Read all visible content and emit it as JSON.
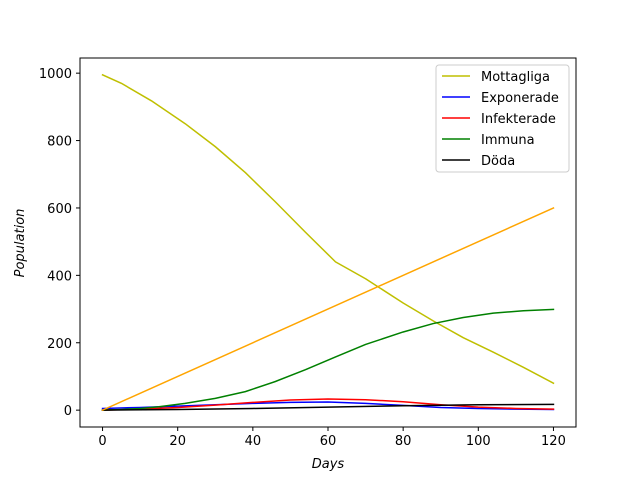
{
  "chart_data": {
    "type": "line",
    "xlabel": "Days",
    "ylabel": "Population",
    "xlim": [
      -6,
      126
    ],
    "ylim": [
      -50,
      1045
    ],
    "x_ticks": [
      0,
      20,
      40,
      60,
      80,
      100,
      120
    ],
    "y_ticks": [
      0,
      200,
      400,
      600,
      800,
      1000
    ],
    "grid": false,
    "legend_position": "top-right",
    "series": [
      {
        "name": "Mottagliga",
        "color": "#bfbf00",
        "x": [
          0,
          5,
          13,
          22,
          30,
          38,
          46,
          54,
          62,
          70,
          80,
          88,
          96,
          104,
          112,
          120
        ],
        "values": [
          995,
          970,
          918,
          850,
          782,
          705,
          618,
          528,
          440,
          390,
          318,
          265,
          215,
          172,
          127,
          80
        ]
      },
      {
        "name": "Exponerade",
        "color": "#0000ff",
        "x": [
          0,
          10,
          20,
          30,
          40,
          50,
          60,
          70,
          80,
          90,
          100,
          110,
          120
        ],
        "values": [
          5,
          8,
          12,
          16,
          20,
          23,
          24,
          20,
          14,
          8,
          5,
          3,
          2
        ]
      },
      {
        "name": "Infekterade",
        "color": "#ff0000",
        "x": [
          0,
          10,
          20,
          30,
          40,
          50,
          60,
          70,
          80,
          90,
          100,
          110,
          120
        ],
        "values": [
          0,
          3,
          8,
          15,
          23,
          30,
          33,
          31,
          25,
          16,
          9,
          5,
          3
        ]
      },
      {
        "name": "Immuna",
        "color": "#008000",
        "x": [
          0,
          5,
          10,
          15,
          22,
          30,
          38,
          46,
          54,
          62,
          70,
          80,
          88,
          96,
          104,
          112,
          120
        ],
        "values": [
          0,
          2,
          5,
          10,
          20,
          35,
          55,
          85,
          120,
          158,
          195,
          232,
          257,
          275,
          288,
          295,
          299
        ]
      },
      {
        "name": "Döda",
        "color": "#000000",
        "x": [
          0,
          20,
          40,
          60,
          80,
          100,
          120
        ],
        "values": [
          0,
          2,
          5,
          9,
          13,
          16,
          17
        ]
      },
      {
        "name": "",
        "color": "#ffa500",
        "x": [
          0,
          120
        ],
        "values": [
          0,
          600
        ]
      }
    ]
  }
}
